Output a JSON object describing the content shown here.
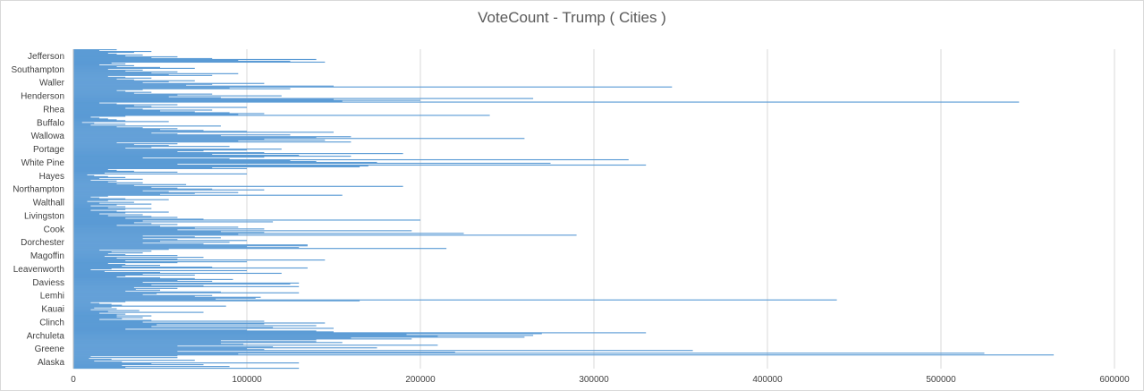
{
  "chart_data": {
    "type": "bar",
    "orientation": "horizontal",
    "title": "VoteCount - Trump ( Cities )",
    "xlabel": "",
    "ylabel": "",
    "xlim": [
      0,
      600000
    ],
    "x_ticks": [
      0,
      100000,
      200000,
      300000,
      400000,
      500000,
      600000
    ],
    "x_tick_labels": [
      "0",
      "100000",
      "200000",
      "300000",
      "400000",
      "500000",
      "600000"
    ],
    "grid": "vertical",
    "bar_color": "#5B9BD5",
    "y_tick_labels_shown": [
      "Alaska",
      "Greene",
      "Archuleta",
      "Clinch",
      "Kauai",
      "Lemhi",
      "Daviess",
      "Leavenworth",
      "Magoffin",
      "Dorchester",
      "Cook",
      "Livingston",
      "Walthall",
      "Northampton",
      "Hayes",
      "White Pine",
      "Portage",
      "Wallowa",
      "Buffalo",
      "Rhea",
      "Henderson",
      "Waller",
      "Southampton",
      "Jefferson"
    ],
    "groups": [
      {
        "label": "Alaska",
        "values": [
          130000,
          30000,
          90000,
          28000,
          75000,
          45000,
          130000,
          28000,
          12000,
          70000,
          22000,
          9000,
          60000,
          10000,
          60000
        ]
      },
      {
        "label": "Greene",
        "values": [
          565000,
          95000,
          525000,
          220000,
          60000,
          357000,
          110000,
          100000,
          175000,
          115000,
          60000,
          210000,
          98000,
          85000,
          155000
        ]
      },
      {
        "label": "Archuleta",
        "values": [
          140000,
          85000,
          140000,
          195000,
          160000,
          260000,
          210000,
          265000,
          192000,
          270000,
          330000,
          150000,
          140000,
          100000,
          30000
        ]
      },
      {
        "label": "Clinch",
        "values": [
          150000,
          115000,
          45000,
          140000,
          48000,
          110000,
          145000,
          40000,
          110000,
          45000,
          15000,
          28000,
          40000,
          25000,
          45000
        ]
      },
      {
        "label": "Kauai",
        "values": [
          25000,
          30000,
          15000,
          75000,
          20000,
          38000,
          10000,
          25000,
          12000,
          22000,
          88000,
          28000,
          22000,
          15000,
          10000
        ]
      },
      {
        "label": "Lemhi",
        "values": [
          30000,
          165000,
          440000,
          82000,
          105000,
          108000,
          70000,
          80000,
          40000,
          48000,
          130000,
          85000,
          30000,
          50000,
          36000
        ]
      },
      {
        "label": "Daviess",
        "values": [
          60000,
          35000,
          130000,
          75000,
          45000,
          125000,
          130000,
          40000,
          80000,
          60000,
          92000,
          70000,
          50000,
          25000,
          30000
        ]
      },
      {
        "label": "Leavenworth",
        "values": [
          70000,
          40000,
          120000,
          50000,
          18000,
          100000,
          10000,
          22000,
          135000,
          80000,
          28000,
          50000,
          30000,
          20000,
          60000
        ]
      },
      {
        "label": "Magoffin",
        "values": [
          100000,
          30000,
          145000,
          60000,
          25000,
          75000,
          18000,
          60000,
          30000,
          20000,
          40000,
          22000,
          45000,
          15000,
          55000
        ]
      },
      {
        "label": "Dorchester",
        "values": [
          215000,
          130000,
          100000,
          135000,
          135000,
          75000,
          40000,
          90000,
          50000,
          100000,
          60000,
          40000,
          85000,
          70000,
          40000
        ]
      },
      {
        "label": "Cook",
        "values": [
          290000,
          95000,
          225000,
          110000,
          85000,
          195000,
          60000,
          110000,
          70000,
          95000,
          50000,
          25000,
          60000,
          45000,
          35000
        ]
      },
      {
        "label": "Livingston",
        "values": [
          115000,
          40000,
          200000,
          75000,
          30000,
          60000,
          45000,
          20000,
          40000,
          15000,
          30000,
          55000,
          25000,
          10000,
          30000
        ]
      },
      {
        "label": "Walthall",
        "values": [
          45000,
          20000,
          30000,
          10000,
          25000,
          45000,
          15000,
          35000,
          8000,
          20000,
          55000,
          30000,
          15000,
          10000,
          20000
        ]
      },
      {
        "label": "Northampton",
        "values": [
          155000,
          50000,
          70000,
          95000,
          55000,
          40000,
          110000,
          80000,
          60000,
          45000,
          190000,
          35000,
          65000,
          25000,
          40000
        ]
      },
      {
        "label": "Hayes",
        "values": [
          20000,
          25000,
          10000,
          40000,
          15000,
          30000,
          20000,
          12000,
          8000,
          100000,
          18000,
          60000,
          35000,
          25000,
          20000
        ]
      },
      {
        "label": "White Pine",
        "values": [
          100000,
          80000,
          165000,
          170000,
          330000,
          60000,
          275000,
          175000,
          140000,
          125000,
          320000,
          90000,
          40000,
          110000,
          160000
        ]
      },
      {
        "label": "Portage",
        "values": [
          130000,
          80000,
          190000,
          110000,
          60000,
          75000,
          100000,
          120000,
          30000,
          45000,
          90000,
          55000,
          35000,
          60000,
          25000
        ]
      },
      {
        "label": "Wallowa",
        "values": [
          160000,
          95000,
          145000,
          110000,
          260000,
          140000,
          160000,
          85000,
          125000,
          60000,
          45000,
          150000,
          100000,
          75000,
          50000
        ]
      },
      {
        "label": "Buffalo",
        "values": [
          60000,
          40000,
          25000,
          85000,
          10000,
          30000,
          12000,
          5000,
          55000,
          30000,
          25000,
          20000,
          15000,
          10000,
          30000
        ]
      },
      {
        "label": "Rhea",
        "values": [
          240000,
          95000,
          110000,
          90000,
          70000,
          50000,
          80000,
          40000,
          30000,
          100000,
          45000,
          35000,
          60000,
          25000,
          15000
        ]
      },
      {
        "label": "Henderson",
        "values": [
          545000,
          155000,
          200000,
          150000,
          265000,
          85000,
          55000,
          120000,
          60000,
          80000,
          35000,
          45000,
          30000,
          25000,
          40000
        ]
      },
      {
        "label": "Waller",
        "values": [
          125000,
          90000,
          345000,
          150000,
          65000,
          80000,
          110000,
          40000,
          55000,
          70000,
          35000,
          25000,
          45000,
          30000,
          20000
        ]
      },
      {
        "label": "Southampton",
        "values": [
          80000,
          55000,
          95000,
          45000,
          60000,
          30000,
          40000,
          20000,
          70000,
          50000,
          25000,
          35000,
          15000,
          30000,
          22000
        ]
      },
      {
        "label": "Jefferson",
        "values": [
          145000,
          125000,
          95000,
          140000,
          80000,
          45000,
          60000,
          30000,
          40000,
          25000,
          20000,
          35000,
          45000,
          15000,
          25000
        ]
      }
    ]
  }
}
